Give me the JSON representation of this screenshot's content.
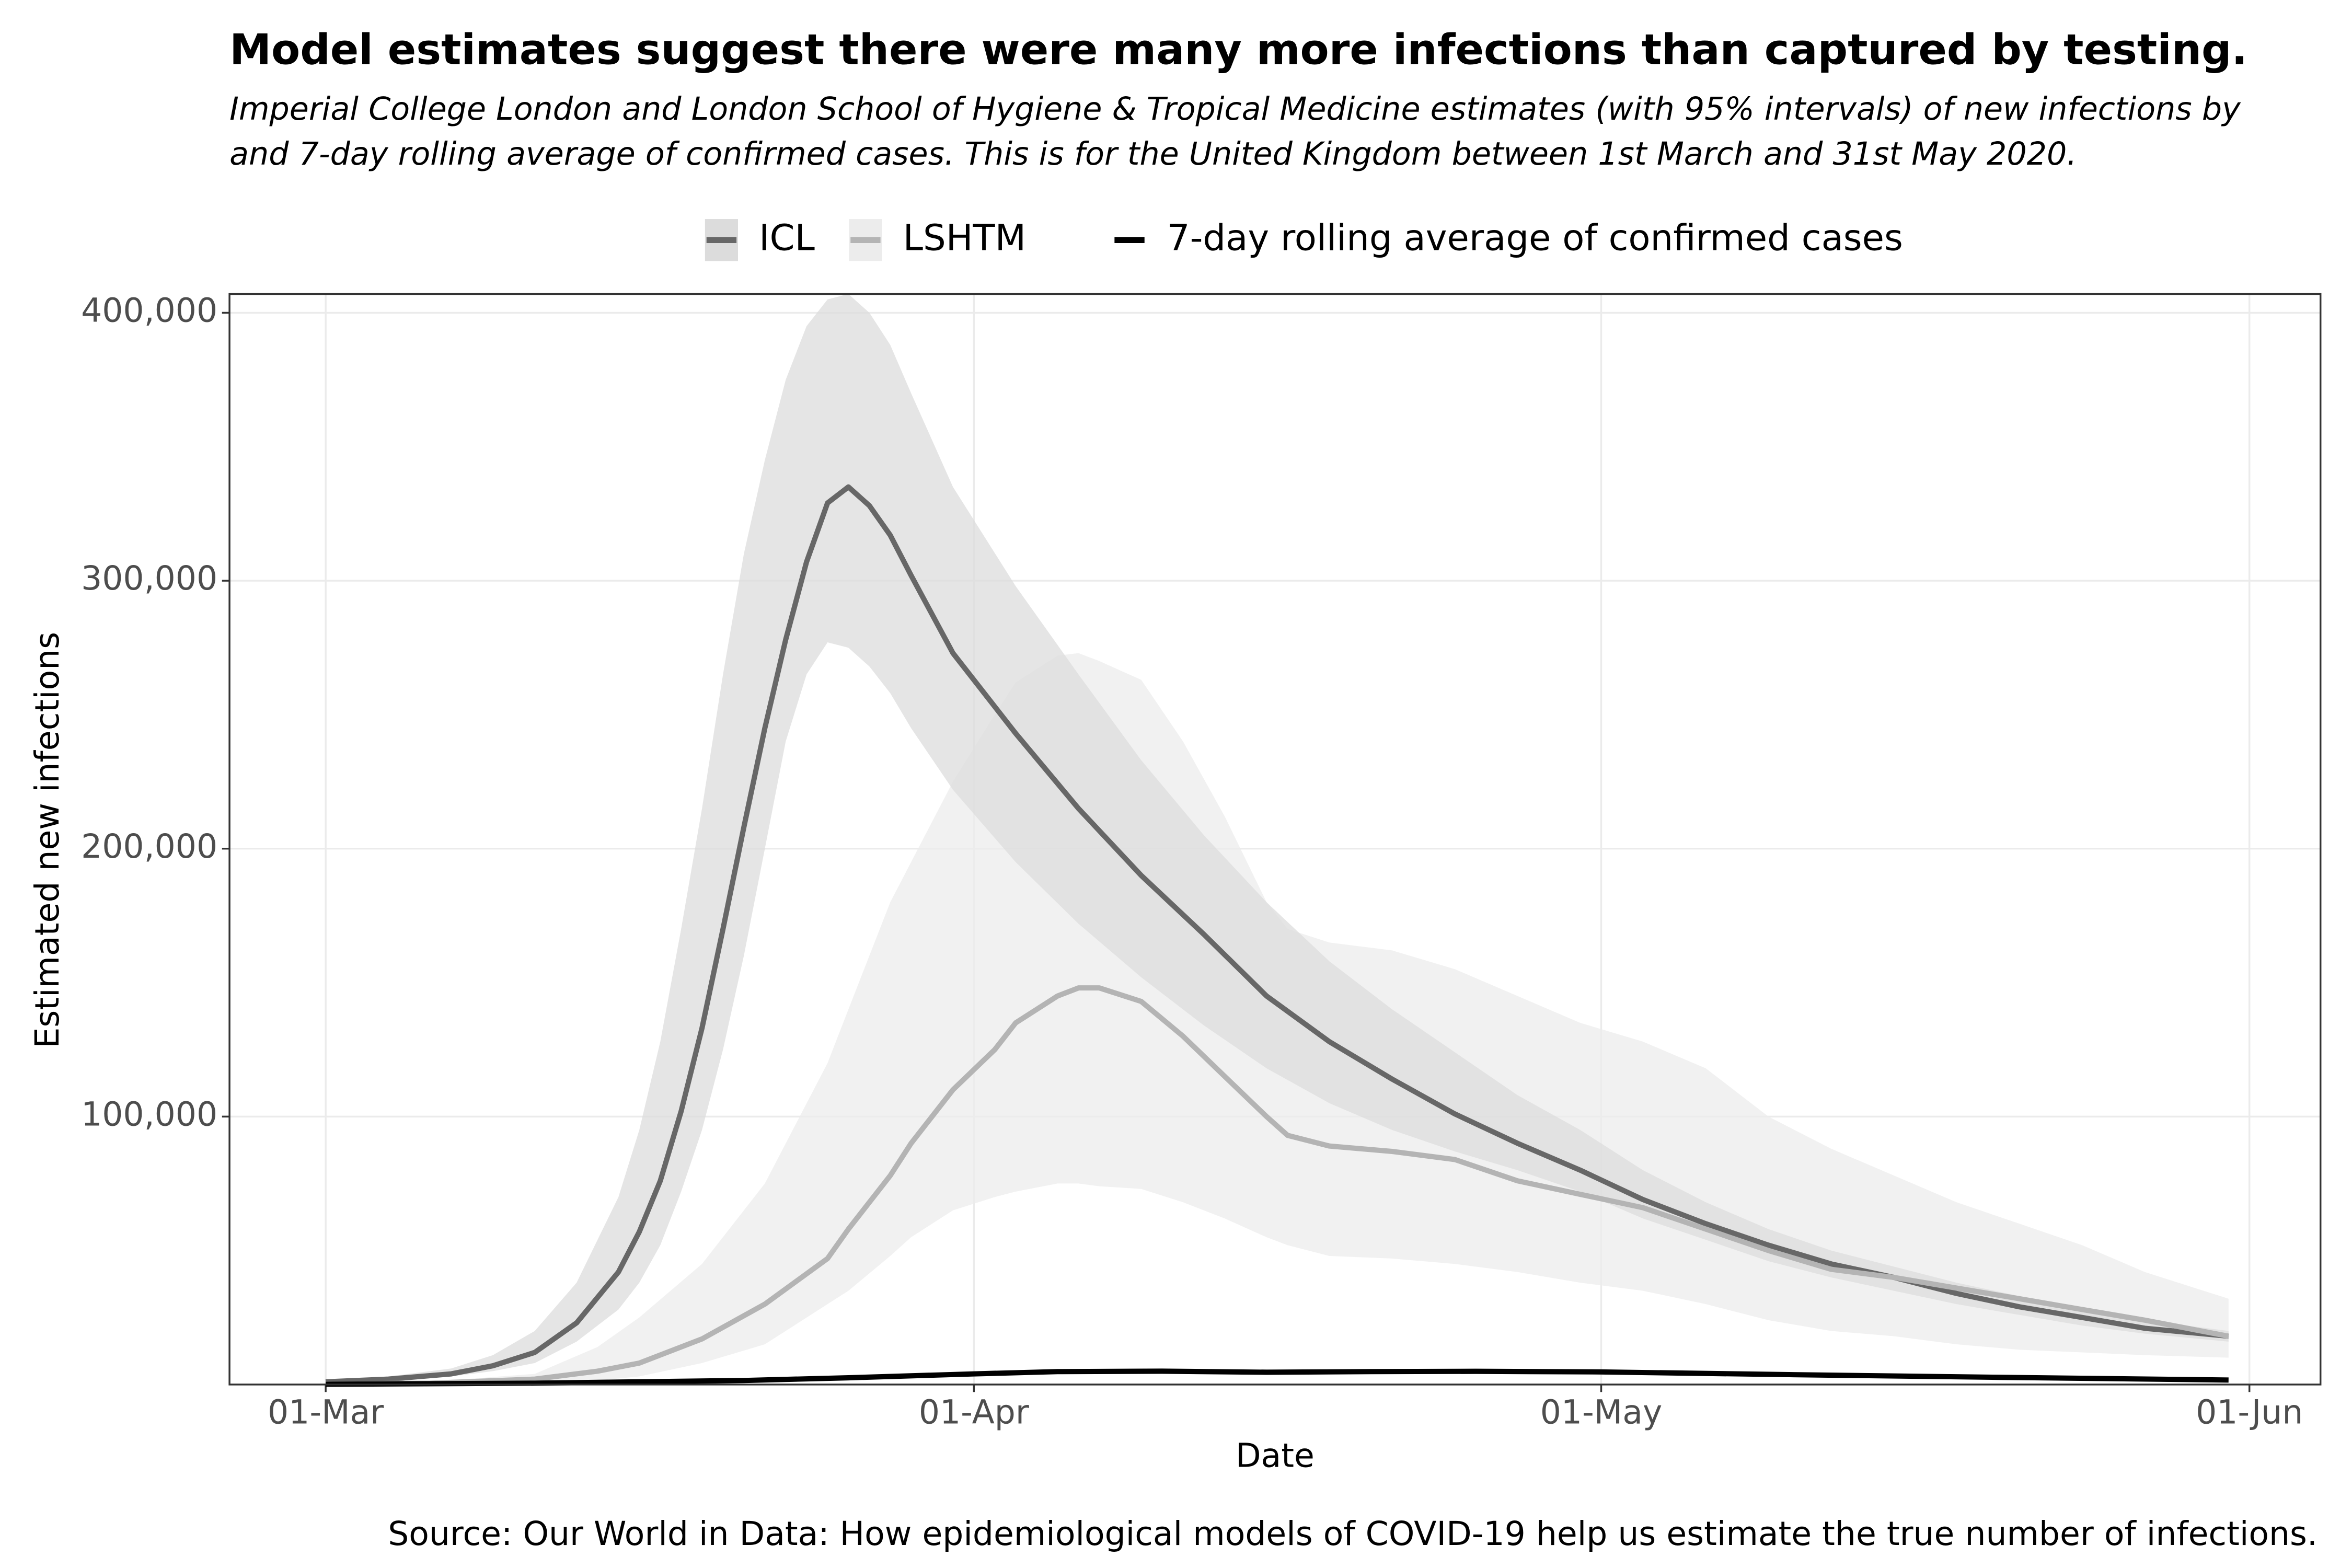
{
  "chart_data": {
    "type": "line",
    "title": "Model estimates suggest there were many more infections than captured by testing.",
    "subtitle": [
      "Imperial College London and London School of Hygiene & Tropical Medicine estimates (with 95% intervals) of new infections by",
      "and 7-day rolling average of confirmed cases. This is for the United Kingdom between 1st March and 31st May 2020."
    ],
    "x_label": "Date",
    "y_label": "Estimated new infections",
    "source": "Source: Our World in Data: How epidemiological models of COVID-19 help us estimate the true number of infections.",
    "xlim": [
      -4.6,
      95.4
    ],
    "xticks": [
      {
        "value": 0,
        "label": "01-Mar"
      },
      {
        "value": 31,
        "label": "01-Apr"
      },
      {
        "value": 61,
        "label": "01-May"
      },
      {
        "value": 92,
        "label": "01-Jun"
      }
    ],
    "ylim": [
      0,
      407000
    ],
    "yticks": [
      {
        "value": 100000,
        "label": "100,000"
      },
      {
        "value": 200000,
        "label": "200,000"
      },
      {
        "value": 300000,
        "label": "300,000"
      },
      {
        "value": 400000,
        "label": "400,000"
      }
    ],
    "grid": true,
    "legend": "top",
    "series": [
      {
        "name": "ICL",
        "color": "#676767",
        "band_color": "#dcdcdc",
        "x": [
          0,
          3,
          6,
          8,
          10,
          12,
          14,
          15,
          16,
          17,
          18,
          19,
          20,
          21,
          22,
          23,
          24,
          25,
          26,
          27,
          28,
          30,
          33,
          36,
          39,
          42,
          45,
          48,
          51,
          54,
          57,
          60,
          63,
          66,
          69,
          72,
          75,
          78,
          81,
          84,
          87,
          91
        ],
        "values": [
          1000,
          2000,
          4000,
          7000,
          12000,
          23000,
          42000,
          57000,
          76000,
          102000,
          133000,
          170000,
          208000,
          245000,
          278000,
          307000,
          329000,
          335000,
          328000,
          317000,
          302000,
          273000,
          243000,
          215000,
          190000,
          168000,
          145000,
          128000,
          114000,
          101000,
          90000,
          80000,
          69000,
          60000,
          52000,
          45000,
          40000,
          34000,
          29000,
          25000,
          21000,
          18000
        ],
        "upper": [
          1500,
          3000,
          6000,
          11000,
          20000,
          38000,
          70000,
          95000,
          128000,
          170000,
          215000,
          265000,
          310000,
          345000,
          375000,
          395000,
          405000,
          407000,
          400000,
          388000,
          370000,
          335000,
          298000,
          265000,
          233000,
          205000,
          180000,
          158000,
          140000,
          124000,
          108000,
          95000,
          80000,
          68000,
          58000,
          50000,
          44000,
          38000,
          33000,
          28000,
          24000,
          20000
        ],
        "lower": [
          700,
          1500,
          3000,
          5000,
          8000,
          16000,
          28000,
          38000,
          52000,
          72000,
          95000,
          125000,
          160000,
          200000,
          240000,
          265000,
          277000,
          275000,
          268000,
          258000,
          245000,
          222000,
          195000,
          172000,
          152000,
          134000,
          118000,
          105000,
          95000,
          87000,
          80000,
          72000,
          62000,
          54000,
          46000,
          40000,
          35000,
          30000,
          26000,
          22000,
          19000,
          16000
        ]
      },
      {
        "name": "LSHTM",
        "color": "#b4b4b4",
        "band_color": "#ececec",
        "x": [
          0,
          5,
          10,
          13,
          15,
          18,
          21,
          24,
          25,
          27,
          28,
          30,
          32,
          33,
          35,
          36,
          37,
          39,
          41,
          43,
          45,
          46,
          48,
          51,
          54,
          57,
          60,
          63,
          66,
          69,
          72,
          75,
          78,
          81,
          84,
          87,
          91
        ],
        "values": [
          200,
          500,
          2000,
          5000,
          8000,
          17000,
          30000,
          47000,
          58000,
          78000,
          90000,
          110000,
          125000,
          135000,
          145000,
          148000,
          148000,
          143000,
          130000,
          115000,
          100000,
          93000,
          89000,
          87000,
          84000,
          76000,
          71000,
          66000,
          58000,
          50000,
          43000,
          40000,
          36000,
          32000,
          28000,
          24000,
          18000
        ],
        "upper": [
          300,
          1000,
          4000,
          14000,
          25000,
          45000,
          75000,
          120000,
          140000,
          180000,
          195000,
          225000,
          250000,
          262000,
          272000,
          273000,
          270000,
          263000,
          240000,
          212000,
          180000,
          170000,
          165000,
          162000,
          155000,
          145000,
          135000,
          128000,
          118000,
          100000,
          88000,
          78000,
          68000,
          60000,
          52000,
          42000,
          32000
        ],
        "lower": [
          100,
          200,
          500,
          1500,
          3000,
          8000,
          15000,
          30000,
          35000,
          48000,
          55000,
          65000,
          70000,
          72000,
          75000,
          75000,
          74000,
          73000,
          68000,
          62000,
          55000,
          52000,
          48000,
          47000,
          45000,
          42000,
          38000,
          35000,
          30000,
          24000,
          20000,
          18000,
          15000,
          13000,
          12000,
          11000,
          10000
        ]
      },
      {
        "name": "7-day rolling average of confirmed cases",
        "color": "#000000",
        "x": [
          0,
          10,
          20,
          25,
          31,
          35,
          40,
          45,
          50,
          55,
          61,
          70,
          80,
          91
        ],
        "values": [
          100,
          500,
          1500,
          2500,
          4000,
          4800,
          5000,
          4600,
          4800,
          4900,
          4700,
          3700,
          2700,
          1700
        ]
      }
    ]
  }
}
